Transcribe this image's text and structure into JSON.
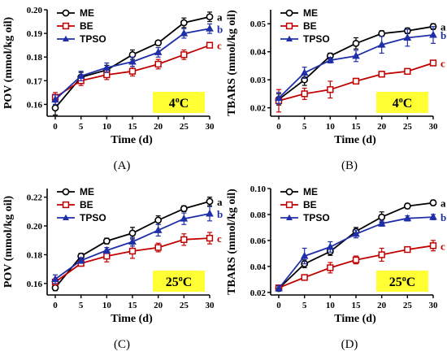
{
  "series_styles": [
    {
      "name": "ME",
      "color": "#000000",
      "marker": "circle"
    },
    {
      "name": "BE",
      "color": "#c00000",
      "marker": "square"
    },
    {
      "name": "TPSO",
      "color": "#1f2fa8",
      "marker": "triangle"
    }
  ],
  "chart_data": [
    {
      "type": "line",
      "panel": "(A)",
      "temperature": "4°C",
      "xlabel": "Time (d)",
      "ylabel": "POV (mmol/kg oil)",
      "x": [
        0,
        5,
        10,
        15,
        20,
        25,
        30
      ],
      "xlim": [
        0,
        30
      ],
      "ylim": [
        0.155,
        0.2
      ],
      "yticks": [
        0.16,
        0.17,
        0.18,
        0.19,
        0.2
      ],
      "ytick_labels": [
        "0.16",
        "0.17",
        "0.18",
        "0.19",
        "0.20"
      ],
      "series": [
        {
          "name": "ME",
          "values": [
            0.1585,
            0.1715,
            0.1745,
            0.181,
            0.186,
            0.1945,
            0.197
          ],
          "errors": [
            0.003,
            0.002,
            0.002,
            0.002,
            0.001,
            0.002,
            0.002
          ],
          "letter": "a"
        },
        {
          "name": "BE",
          "values": [
            0.163,
            0.17,
            0.1725,
            0.174,
            0.177,
            0.181,
            0.185
          ],
          "errors": [
            0.002,
            0.002,
            0.002,
            0.002,
            0.002,
            0.002,
            0.001
          ],
          "letter": "c"
        },
        {
          "name": "TPSO",
          "values": [
            0.162,
            0.172,
            0.1755,
            0.178,
            0.182,
            0.19,
            0.192
          ],
          "errors": [
            0.002,
            0.002,
            0.002,
            0.002,
            0.002,
            0.002,
            0.002
          ],
          "letter": "b"
        }
      ],
      "legend": "top-left"
    },
    {
      "type": "line",
      "panel": "(B)",
      "temperature": "4°C",
      "xlabel": "Time (d)",
      "ylabel": "TBARS (mmol/kg oil)",
      "x": [
        0,
        5,
        10,
        15,
        20,
        25,
        30
      ],
      "xlim": [
        0,
        30
      ],
      "ylim": [
        0.017,
        0.055
      ],
      "yticks": [
        0.02,
        0.03,
        0.04,
        0.05
      ],
      "ytick_labels": [
        "0.02",
        "0.03",
        "0.04",
        "0.05"
      ],
      "series": [
        {
          "name": "ME",
          "values": [
            0.023,
            0.03,
            0.0385,
            0.043,
            0.0465,
            0.0475,
            0.049
          ],
          "errors": [
            0.002,
            0.002,
            0.001,
            0.002,
            0.001,
            0.001,
            0.001
          ],
          "letter": "a"
        },
        {
          "name": "BE",
          "values": [
            0.0225,
            0.025,
            0.0265,
            0.0295,
            0.032,
            0.033,
            0.036
          ],
          "errors": [
            0.004,
            0.002,
            0.003,
            0.001,
            0.001,
            0.001,
            0.001
          ],
          "letter": "c"
        },
        {
          "name": "TPSO",
          "values": [
            0.0235,
            0.0325,
            0.037,
            0.0385,
            0.0425,
            0.045,
            0.046
          ],
          "errors": [
            0.002,
            0.002,
            0.001,
            0.002,
            0.003,
            0.003,
            0.003
          ],
          "letter": "b"
        }
      ],
      "legend": "top-left"
    },
    {
      "type": "line",
      "panel": "(C)",
      "temperature": "25°C",
      "xlabel": "Time (d)",
      "ylabel": "POV (mmol/kg oil)",
      "x": [
        0,
        5,
        10,
        15,
        20,
        25,
        30
      ],
      "xlim": [
        0,
        30
      ],
      "ylim": [
        0.152,
        0.226
      ],
      "yticks": [
        0.16,
        0.18,
        0.2,
        0.22
      ],
      "ytick_labels": [
        "0.16",
        "0.18",
        "0.20",
        "0.22"
      ],
      "series": [
        {
          "name": "ME",
          "values": [
            0.157,
            0.179,
            0.1895,
            0.195,
            0.204,
            0.212,
            0.217
          ],
          "errors": [
            0.002,
            0.002,
            0.002,
            0.004,
            0.003,
            0.002,
            0.003
          ],
          "letter": "a"
        },
        {
          "name": "BE",
          "values": [
            0.161,
            0.174,
            0.179,
            0.1825,
            0.185,
            0.1905,
            0.1915
          ],
          "errors": [
            0.002,
            0.002,
            0.004,
            0.005,
            0.003,
            0.004,
            0.004
          ],
          "letter": "c"
        },
        {
          "name": "TPSO",
          "values": [
            0.163,
            0.176,
            0.183,
            0.189,
            0.197,
            0.205,
            0.2085
          ],
          "errors": [
            0.003,
            0.002,
            0.002,
            0.003,
            0.004,
            0.004,
            0.005
          ],
          "letter": "b"
        }
      ],
      "legend": "top-left"
    },
    {
      "type": "line",
      "panel": "(D)",
      "temperature": "25°C",
      "xlabel": "Time (d)",
      "ylabel": "TBARS (mmol/kg oil)",
      "x": [
        0,
        5,
        10,
        15,
        20,
        25,
        30
      ],
      "xlim": [
        0,
        30
      ],
      "ylim": [
        0.018,
        0.1
      ],
      "yticks": [
        0.02,
        0.04,
        0.06,
        0.08,
        0.1
      ],
      "ytick_labels": [
        "0.02",
        "0.04",
        "0.06",
        "0.08",
        "0.10"
      ],
      "series": [
        {
          "name": "ME",
          "values": [
            0.023,
            0.042,
            0.0515,
            0.067,
            0.078,
            0.0865,
            0.089
          ],
          "errors": [
            0.002,
            0.003,
            0.003,
            0.003,
            0.004,
            0.002,
            0.002
          ],
          "letter": "a"
        },
        {
          "name": "BE",
          "values": [
            0.0235,
            0.0315,
            0.039,
            0.045,
            0.049,
            0.053,
            0.056
          ],
          "errors": [
            0.002,
            0.002,
            0.004,
            0.003,
            0.005,
            0.002,
            0.004
          ],
          "letter": "c"
        },
        {
          "name": "TPSO",
          "values": [
            0.023,
            0.048,
            0.055,
            0.065,
            0.073,
            0.077,
            0.078
          ],
          "errors": [
            0.002,
            0.006,
            0.004,
            0.003,
            0.002,
            0.002,
            0.002
          ],
          "letter": "b"
        }
      ],
      "legend": "top-left"
    }
  ]
}
